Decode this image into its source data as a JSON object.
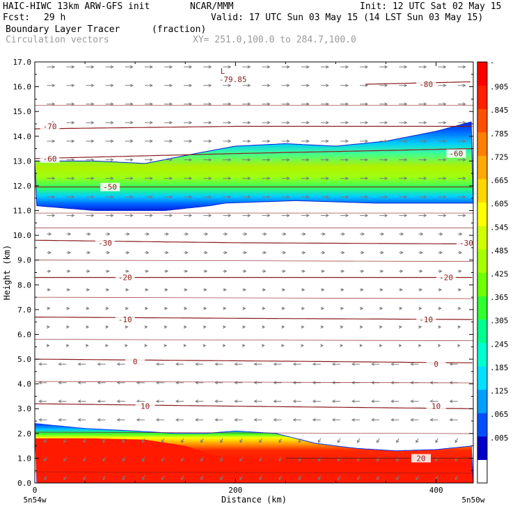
{
  "header": {
    "model": "HAIC-HIWC 13km ARW-GFS init",
    "org": "NCAR/MMM",
    "init": "Init: 12 UTC Sat 02 May 15",
    "fcst_label": "Fcst:",
    "fcst_value": "29 h",
    "valid": "Valid: 17 UTC Sun 03 May 15 (14 LST Sun 03 May 15)",
    "field": "Boundary Layer Tracer",
    "field_units": "(fraction)",
    "vectors": "Circulation vectors",
    "xy_range": "XY= 251.0,100.0 to 284.7,100.0"
  },
  "colors": {
    "contour": "#8b1a1a",
    "vector": "#7a7a7a",
    "colorbar": [
      "#ffffff",
      "#0000c8",
      "#0050ff",
      "#00a0ff",
      "#00e0ff",
      "#00ffd0",
      "#00ff90",
      "#30ff30",
      "#70ff00",
      "#a8ff00",
      "#d0ff00",
      "#ffff00",
      "#ffd700",
      "#ffaa00",
      "#ff8000",
      "#ff5000",
      "#ff2000",
      "#ff0000"
    ]
  },
  "chart_data": {
    "type": "heatmap",
    "xlabel": "Distance (km)",
    "ylabel": "Height (km)",
    "xlim": [
      0,
      437
    ],
    "ylim": [
      0,
      17
    ],
    "x_ticks": [
      0,
      200,
      400
    ],
    "x_tick_labels": [
      "0",
      "200",
      "400"
    ],
    "y_ticks": [
      0,
      1,
      2,
      3,
      4,
      5,
      6,
      7,
      8,
      9,
      10,
      11,
      12,
      13,
      14,
      15,
      16,
      17
    ],
    "y_tick_labels": [
      "0.0",
      "1.0",
      "2.0",
      "3.0",
      "4.0",
      "5.0",
      "6.0",
      "7.0",
      "8.0",
      "9.0",
      "10.0",
      "11.0",
      "12.0",
      "13.0",
      "14.0",
      "15.0",
      "16.0",
      "17.0"
    ],
    "x_endpoint_labels": [
      "5n54w",
      "5n50w"
    ],
    "colorbar_labels": [
      "-",
      ".905",
      ".845",
      ".785",
      ".725",
      ".665",
      ".605",
      ".545",
      ".485",
      ".425",
      ".365",
      ".305",
      ".245",
      ".185",
      ".125",
      ".065",
      ".005"
    ],
    "upper_layer": {
      "bottom_km": [
        [
          0,
          11.2
        ],
        [
          60,
          11.0
        ],
        [
          130,
          11.0
        ],
        [
          175,
          11.2
        ],
        [
          190,
          11.3
        ],
        [
          260,
          11.4
        ],
        [
          340,
          11.3
        ],
        [
          437,
          11.3
        ]
      ],
      "top_km": [
        [
          0,
          13.0
        ],
        [
          60,
          13.0
        ],
        [
          110,
          12.9
        ],
        [
          160,
          13.3
        ],
        [
          200,
          13.6
        ],
        [
          250,
          13.7
        ],
        [
          300,
          13.6
        ],
        [
          350,
          13.8
        ],
        [
          400,
          14.2
        ],
        [
          437,
          14.6
        ]
      ],
      "core_km": [
        [
          0,
          12.1
        ],
        [
          100,
          12.0
        ],
        [
          200,
          12.3
        ],
        [
          300,
          12.4
        ],
        [
          437,
          12.5
        ]
      ]
    },
    "boundary_layer": {
      "top_km": [
        [
          0,
          2.4
        ],
        [
          50,
          2.2
        ],
        [
          100,
          2.1
        ],
        [
          140,
          2.0
        ],
        [
          170,
          2.0
        ],
        [
          200,
          2.1
        ],
        [
          240,
          2.0
        ],
        [
          280,
          1.6
        ],
        [
          320,
          1.4
        ],
        [
          360,
          1.3
        ],
        [
          400,
          1.35
        ],
        [
          437,
          1.5
        ]
      ],
      "red_top_km": [
        [
          0,
          1.8
        ],
        [
          60,
          1.8
        ],
        [
          110,
          1.75
        ],
        [
          150,
          1.5
        ],
        [
          180,
          1.1
        ],
        [
          220,
          1.0
        ],
        [
          260,
          0.9
        ],
        [
          300,
          0.8
        ],
        [
          340,
          0.7
        ],
        [
          380,
          0.65
        ],
        [
          437,
          0.65
        ]
      ]
    },
    "temperature_contours": [
      {
        "value": 0,
        "label": "0",
        "pts": [
          [
            0,
            5.0
          ],
          [
            150,
            4.95
          ],
          [
            300,
            4.9
          ],
          [
            437,
            4.85
          ]
        ],
        "label_at": [
          [
            100,
            4.9
          ],
          [
            400,
            4.8
          ]
        ]
      },
      {
        "value": -10,
        "label": "-10",
        "pts": [
          [
            0,
            6.7
          ],
          [
            200,
            6.65
          ],
          [
            437,
            6.6
          ]
        ],
        "label_at": [
          [
            90,
            6.6
          ],
          [
            390,
            6.6
          ]
        ]
      },
      {
        "value": -20,
        "label": "-20",
        "pts": [
          [
            0,
            8.3
          ],
          [
            200,
            8.3
          ],
          [
            437,
            8.3
          ]
        ],
        "label_at": [
          [
            90,
            8.3
          ],
          [
            410,
            8.3
          ]
        ]
      },
      {
        "value": -30,
        "label": "-30",
        "pts": [
          [
            0,
            9.8
          ],
          [
            200,
            9.7
          ],
          [
            437,
            9.65
          ]
        ],
        "label_at": [
          [
            70,
            9.7
          ],
          [
            430,
            9.7
          ]
        ]
      },
      {
        "value": -50,
        "label": "-50",
        "pts": [
          [
            0,
            11.95
          ],
          [
            200,
            11.95
          ],
          [
            437,
            11.95
          ]
        ],
        "label_at": [
          [
            75,
            11.95
          ]
        ]
      },
      {
        "value": -60,
        "label": "-60",
        "pts": [
          [
            0,
            13.1
          ],
          [
            200,
            13.3
          ],
          [
            437,
            13.5
          ]
        ],
        "label_at": [
          [
            15,
            13.1
          ],
          [
            420,
            13.3
          ]
        ]
      },
      {
        "value": -70,
        "label": "-70",
        "pts": [
          [
            0,
            14.3
          ],
          [
            200,
            14.4
          ],
          [
            437,
            14.4
          ]
        ],
        "label_at": [
          [
            15,
            14.4
          ]
        ]
      },
      {
        "value": -80,
        "label": "-80",
        "pts": [
          [
            330,
            16.1
          ],
          [
            437,
            16.2
          ]
        ],
        "label_at": [
          [
            390,
            16.1
          ]
        ]
      },
      {
        "value": 10,
        "label": "10",
        "pts": [
          [
            0,
            3.2
          ],
          [
            200,
            3.1
          ],
          [
            437,
            3.0
          ]
        ],
        "label_at": [
          [
            110,
            3.1
          ],
          [
            400,
            3.1
          ]
        ]
      },
      {
        "value": 20,
        "label": "20",
        "pts": [
          [
            250,
            1.0
          ],
          [
            437,
            1.0
          ]
        ],
        "label_at": [
          [
            385,
            1.0
          ]
        ]
      }
    ],
    "minimum_label": {
      "letter": "L",
      "value": "-79.85",
      "x": 185,
      "y": 16.3
    }
  }
}
